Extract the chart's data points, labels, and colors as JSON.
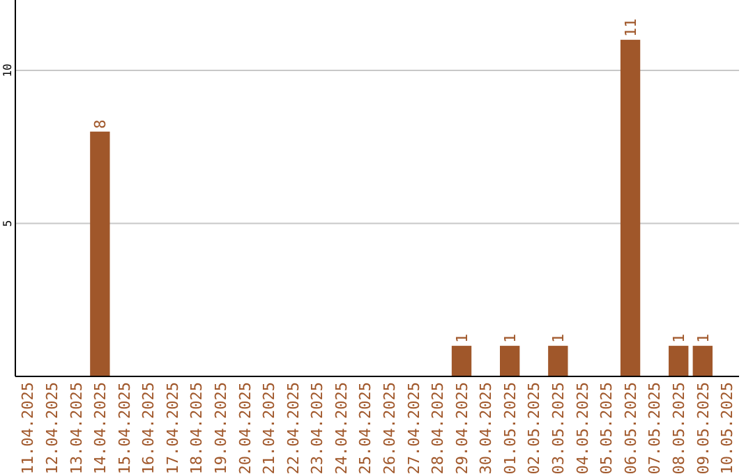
{
  "chart_data": {
    "type": "bar",
    "categories": [
      "11.04.2025",
      "12.04.2025",
      "13.04.2025",
      "14.04.2025",
      "15.04.2025",
      "16.04.2025",
      "17.04.2025",
      "18.04.2025",
      "19.04.2025",
      "20.04.2025",
      "21.04.2025",
      "22.04.2025",
      "23.04.2025",
      "24.04.2025",
      "25.04.2025",
      "26.04.2025",
      "27.04.2025",
      "28.04.2025",
      "29.04.2025",
      "30.04.2025",
      "01.05.2025",
      "02.05.2025",
      "03.05.2025",
      "04.05.2025",
      "05.05.2025",
      "06.05.2025",
      "07.05.2025",
      "08.05.2025",
      "09.05.2025",
      "10.05.2025"
    ],
    "values": [
      0,
      0,
      0,
      8,
      0,
      0,
      0,
      0,
      0,
      0,
      0,
      0,
      0,
      0,
      0,
      0,
      0,
      0,
      1,
      0,
      1,
      0,
      1,
      0,
      0,
      11,
      0,
      1,
      1,
      0
    ],
    "value_labels": [
      null,
      null,
      null,
      "8",
      null,
      null,
      null,
      null,
      null,
      null,
      null,
      null,
      null,
      null,
      null,
      null,
      null,
      null,
      "1",
      null,
      "1",
      null,
      "1",
      null,
      null,
      "11",
      null,
      "1",
      "1",
      null
    ],
    "color": "#a0572a",
    "ylim": [
      0,
      12.3
    ],
    "yticks": [
      5,
      10
    ],
    "grid": "y"
  }
}
